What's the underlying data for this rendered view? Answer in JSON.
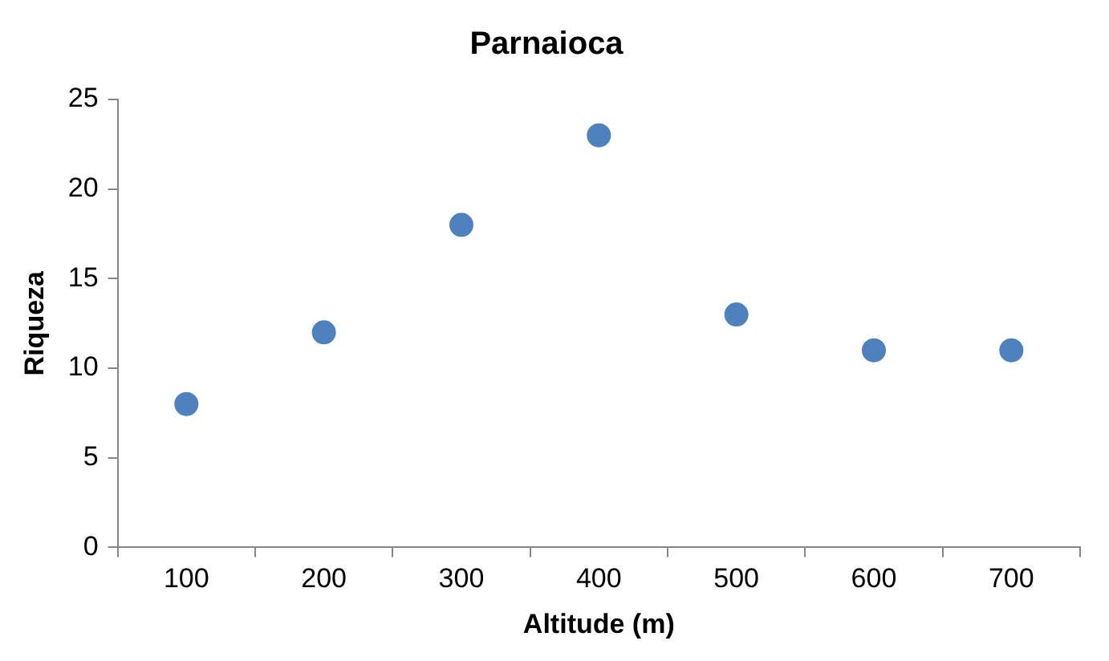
{
  "chart_data": {
    "type": "scatter",
    "title": "Parnaioca",
    "xlabel": "Altitude (m)",
    "ylabel": "Riqueza",
    "categories": [
      "100",
      "200",
      "300",
      "400",
      "500",
      "600",
      "700"
    ],
    "series": [
      {
        "color": "#4f81bd",
        "values": [
          8,
          12,
          18,
          23,
          13,
          11,
          11
        ]
      }
    ],
    "ylim": [
      0,
      25
    ],
    "yticks": [
      0,
      5,
      10,
      15,
      20,
      25
    ],
    "grid": false,
    "legend": false,
    "marker": "circle"
  }
}
